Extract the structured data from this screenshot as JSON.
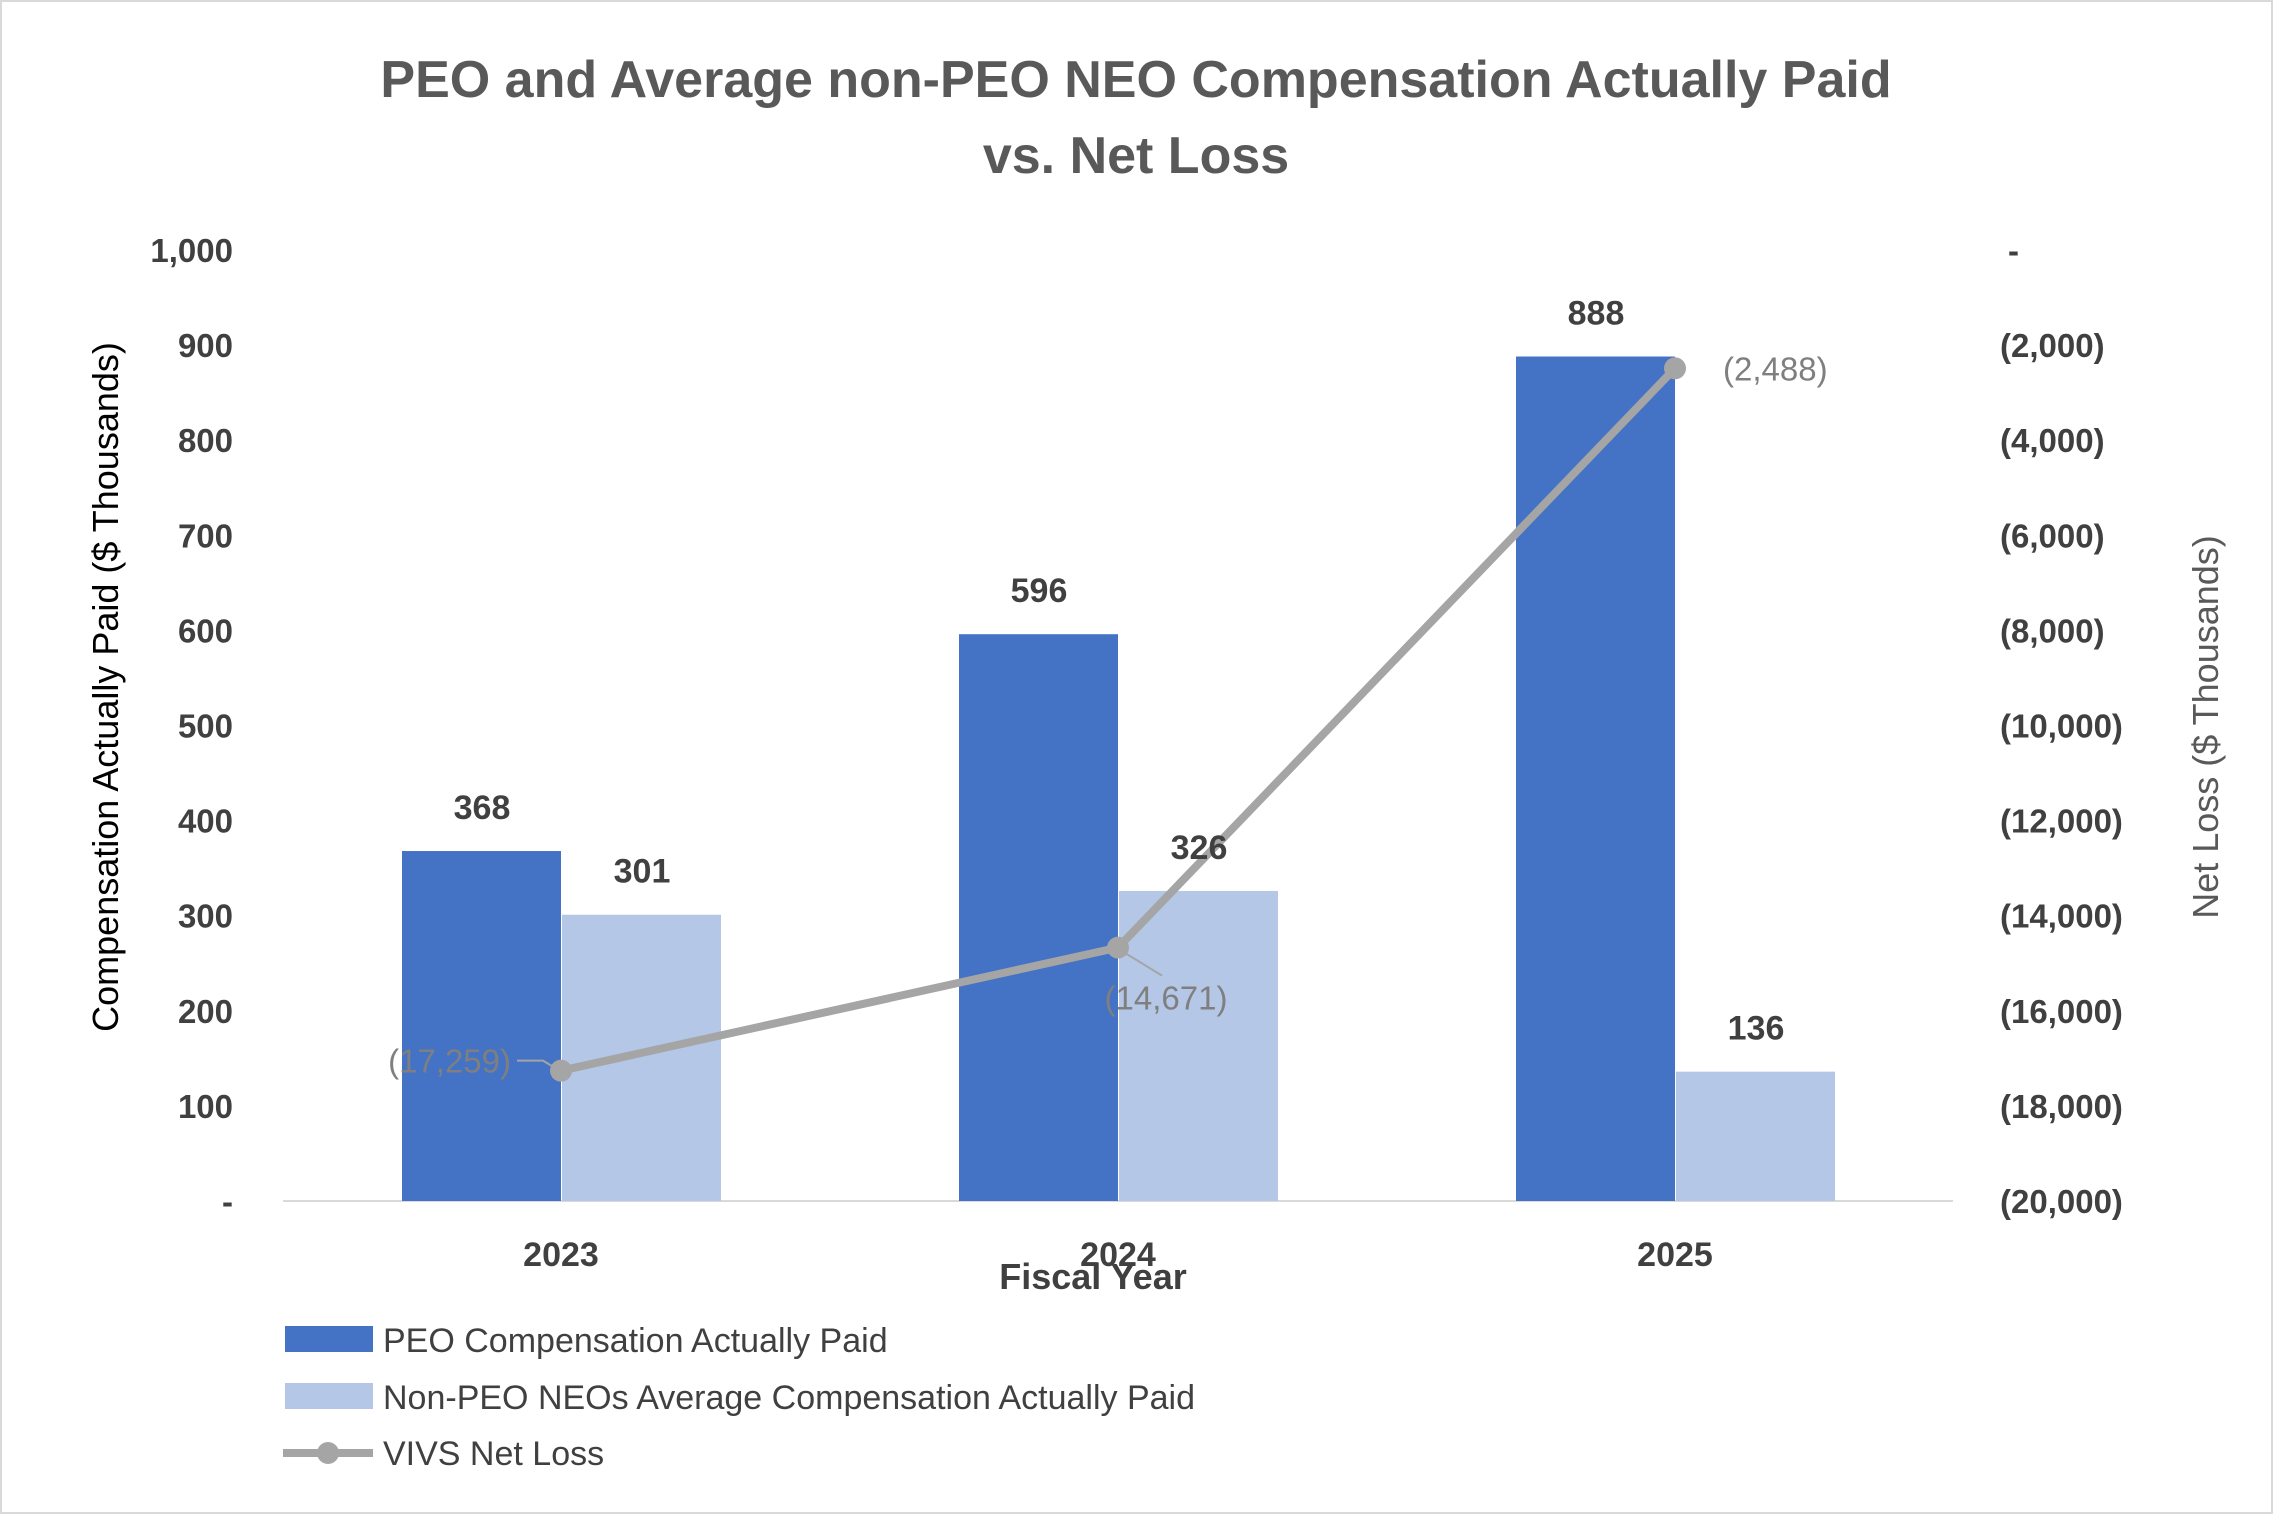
{
  "chart_data": {
    "type": "bar",
    "title": [
      "PEO and Average non-PEO NEO Compensation Actually Paid",
      "vs. Net Loss"
    ],
    "xlabel": "Fiscal Year",
    "ylabel": "Compensation Actually Paid ($ Thousands)",
    "ylabel_right": "Net Loss ($ Thousands)",
    "categories": [
      "2023",
      "2024",
      "2025"
    ],
    "ylim": [
      0,
      1000
    ],
    "ylim_right": [
      -20000,
      0
    ],
    "yticks": [
      "-",
      "100",
      "200",
      "300",
      "400",
      "500",
      "600",
      "700",
      "800",
      "900",
      "1,000"
    ],
    "yticks_right": [
      "(20,000)",
      "(18,000)",
      "(16,000)",
      "(14,000)",
      "(12,000)",
      "(10,000)",
      "(8,000)",
      "(6,000)",
      "(4,000)",
      "(2,000)",
      "-"
    ],
    "series": [
      {
        "name": "PEO Compensation Actually Paid",
        "type": "bar",
        "axis": "left",
        "color": "#4472c4",
        "values": [
          368,
          596,
          888
        ],
        "labels": [
          "368",
          "596",
          "888"
        ]
      },
      {
        "name": "Non-PEO NEOs Average Compensation Actually Paid",
        "type": "bar",
        "axis": "left",
        "color": "#b4c7e7",
        "values": [
          301,
          326,
          136
        ],
        "labels": [
          "301",
          "326",
          "136"
        ]
      },
      {
        "name": "VIVS Net Loss",
        "type": "line",
        "axis": "right",
        "color": "#a5a5a5",
        "values": [
          -17259,
          -14671,
          -2488
        ],
        "labels": [
          "(17,259)",
          "(14,671)",
          "(2,488)"
        ]
      }
    ],
    "legend_position": "bottom-left",
    "grid": false
  }
}
